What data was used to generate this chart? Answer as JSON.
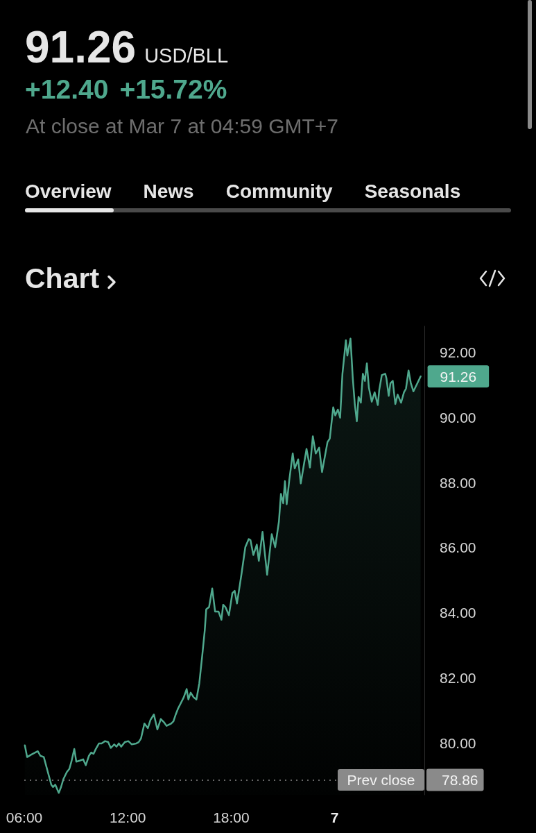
{
  "chart_data": {
    "type": "area",
    "title": "91.26",
    "subtitle": "USD/BLL",
    "x": [
      "--03-06T06:02",
      "--03-06T06:10",
      "--03-06T06:23",
      "--03-06T06:47",
      "--03-06T06:56",
      "--03-06T07:08",
      "--03-06T07:34",
      "--03-06T07:40",
      "--03-06T07:48",
      "--03-06T08:00",
      "--03-06T08:08",
      "--03-06T08:16",
      "--03-06T08:28",
      "--03-06T08:37",
      "--03-06T08:44",
      "--03-06T08:54",
      "--03-06T09:01",
      "--03-06T09:13",
      "--03-06T09:25",
      "--03-06T09:34",
      "--03-06T09:45",
      "--03-06T09:53",
      "--03-06T10:01",
      "--03-06T10:09",
      "--03-06T10:20",
      "--03-06T10:29",
      "--03-06T10:41",
      "--03-06T10:52",
      "--03-06T11:01",
      "--03-06T11:13",
      "--03-06T11:21",
      "--03-06T11:29",
      "--03-06T11:37",
      "--03-06T11:50",
      "--03-06T12:02",
      "--03-06T12:14",
      "--03-06T12:30",
      "--03-06T12:38",
      "--03-06T12:46",
      "--03-06T12:58",
      "--03-06T13:10",
      "--03-06T13:19",
      "--03-06T13:31",
      "--03-06T13:43",
      "--03-06T13:55",
      "--03-06T14:07",
      "--03-06T14:15",
      "--03-06T14:31",
      "--03-06T14:39",
      "--03-06T14:47",
      "--03-06T14:55",
      "--03-06T15:03",
      "--03-06T15:15",
      "--03-06T15:25",
      "--03-06T15:31",
      "--03-06T15:39",
      "--03-06T15:49",
      "--03-06T15:59",
      "--03-06T16:09",
      "--03-06T16:20",
      "--03-06T16:28",
      "--03-06T16:33",
      "--03-06T16:43",
      "--03-06T16:54",
      "--03-06T17:04",
      "--03-06T17:16",
      "--03-06T17:26",
      "--03-06T17:32",
      "--03-06T17:40",
      "--03-06T17:52",
      "--03-06T18:04",
      "--03-06T18:12",
      "--03-06T18:20",
      "--03-06T18:30",
      "--03-06T18:36",
      "--03-06T18:49",
      "--03-06T19:01",
      "--03-06T19:07",
      "--03-06T19:17",
      "--03-06T19:29",
      "--03-06T19:36",
      "--03-06T19:49",
      "--03-06T20:05",
      "--03-06T20:21",
      "--03-06T20:33",
      "--03-06T20:46",
      "--03-06T20:53",
      "--03-06T21:01",
      "--03-06T21:07",
      "--03-06T21:13",
      "--03-06T21:22",
      "--03-06T21:34",
      "--03-06T21:41",
      "--03-06T21:53",
      "--03-06T22:02",
      "--03-06T22:12",
      "--03-06T22:22",
      "--03-06T22:34",
      "--03-06T22:44",
      "--03-06T22:54",
      "--03-06T23:06",
      "--03-06T23:16",
      "--03-06T23:24",
      "--03-06T23:35",
      "--03-06T23:43",
      "--03-06T23:55",
      "--03-07T00:02",
      "--03-07T00:11",
      "--03-07T00:19",
      "--03-07T00:27",
      "--03-07T00:39",
      "--03-07T00:44",
      "--03-07T00:55",
      "--03-07T01:03",
      "--03-07T01:10",
      "--03-07T01:17",
      "--03-07T01:23",
      "--03-07T01:31",
      "--03-07T01:38",
      "--03-07T01:45",
      "--03-07T01:52",
      "--03-07T01:59",
      "--03-07T02:09",
      "--03-07T02:19",
      "--03-07T02:30",
      "--03-07T02:35",
      "--03-07T02:44",
      "--03-07T02:56",
      "--03-07T03:00",
      "--03-07T03:08",
      "--03-07T03:14",
      "--03-07T03:22",
      "--03-07T03:31",
      "--03-07T03:39",
      "--03-07T03:51",
      "--03-07T04:01",
      "--03-07T04:08",
      "--03-07T04:17",
      "--03-07T04:25",
      "--03-07T04:34",
      "--03-07T04:44",
      "--03-07T04:59"
    ],
    "values": [
      79.92,
      79.56,
      79.63,
      79.74,
      79.6,
      79.56,
      78.71,
      78.64,
      78.71,
      78.46,
      78.64,
      78.88,
      79.1,
      79.2,
      79.42,
      79.81,
      79.42,
      79.45,
      79.49,
      79.31,
      79.6,
      79.7,
      79.66,
      79.81,
      79.98,
      79.98,
      80.05,
      80.02,
      79.84,
      79.95,
      79.88,
      79.98,
      79.88,
      80.02,
      80.05,
      79.95,
      79.98,
      80.02,
      80.13,
      80.59,
      80.45,
      80.7,
      80.87,
      80.41,
      80.73,
      80.62,
      80.52,
      80.59,
      80.66,
      80.87,
      81.05,
      81.19,
      81.4,
      81.65,
      81.33,
      81.54,
      81.4,
      81.33,
      81.83,
      82.75,
      83.46,
      84.1,
      84.17,
      84.74,
      84.03,
      84.03,
      83.78,
      84.24,
      84.17,
      83.92,
      84.6,
      84.67,
      84.28,
      84.85,
      85.2,
      86.01,
      86.26,
      86.23,
      85.77,
      86.09,
      85.59,
      86.48,
      85.16,
      86.41,
      86.01,
      86.8,
      87.65,
      87.36,
      88.04,
      87.33,
      88.07,
      88.89,
      88.43,
      88.71,
      87.97,
      88.5,
      89.03,
      88.46,
      89.42,
      88.89,
      89.07,
      88.32,
      88.71,
      89.24,
      89.35,
      90.31,
      90.06,
      90.24,
      89.99,
      91.34,
      92.37,
      91.9,
      92.42,
      91.2,
      90.41,
      89.88,
      90.63,
      90.45,
      91.34,
      91.12,
      91.66,
      90.91,
      90.48,
      90.77,
      90.38,
      90.84,
      91.3,
      91.34,
      91.2,
      90.66,
      91.05,
      91.12,
      90.41,
      90.7,
      90.45,
      90.77,
      90.88,
      91.44,
      91.05,
      90.8,
      90.98,
      91.26
    ],
    "color": "#4fa88d",
    "xlim": [
      "--03-06T06:00",
      "--03-07T05:12"
    ],
    "xticks": [
      {
        "value": "--03-06T06:00",
        "label": "06:00"
      },
      {
        "value": "--03-06T12:00",
        "label": "12:00"
      },
      {
        "value": "--03-06T18:00",
        "label": "18:00"
      },
      {
        "value": "--03-07T00:00",
        "label": "7"
      }
    ],
    "ylim": [
      78.4,
      92.8
    ],
    "yticks": [
      {
        "value": 80,
        "label": "80.00"
      },
      {
        "value": 82,
        "label": "82.00"
      },
      {
        "value": 84,
        "label": "84.00"
      },
      {
        "value": 86,
        "label": "86.00"
      },
      {
        "value": 88,
        "label": "88.00"
      },
      {
        "value": 90,
        "label": "90.00"
      },
      {
        "value": 92,
        "label": "92.00"
      }
    ],
    "ref_lines": [
      {
        "axis": "y",
        "value": 78.86,
        "label": "Prev close",
        "color": "#8a8a8a",
        "line_style": "dotted"
      }
    ],
    "annotations": [
      "+12.40",
      "+15.72%",
      "At close at Mar 7 at 04:59 GMT+7",
      "Overview",
      "News",
      "Community",
      "Seasonals",
      "Chart",
      {
        "text": "91.26",
        "x": "--03-07T04:59",
        "y": 91.26
      },
      {
        "text": "78.86",
        "x": "--03-07T05:12",
        "y": 78.86
      }
    ]
  }
}
